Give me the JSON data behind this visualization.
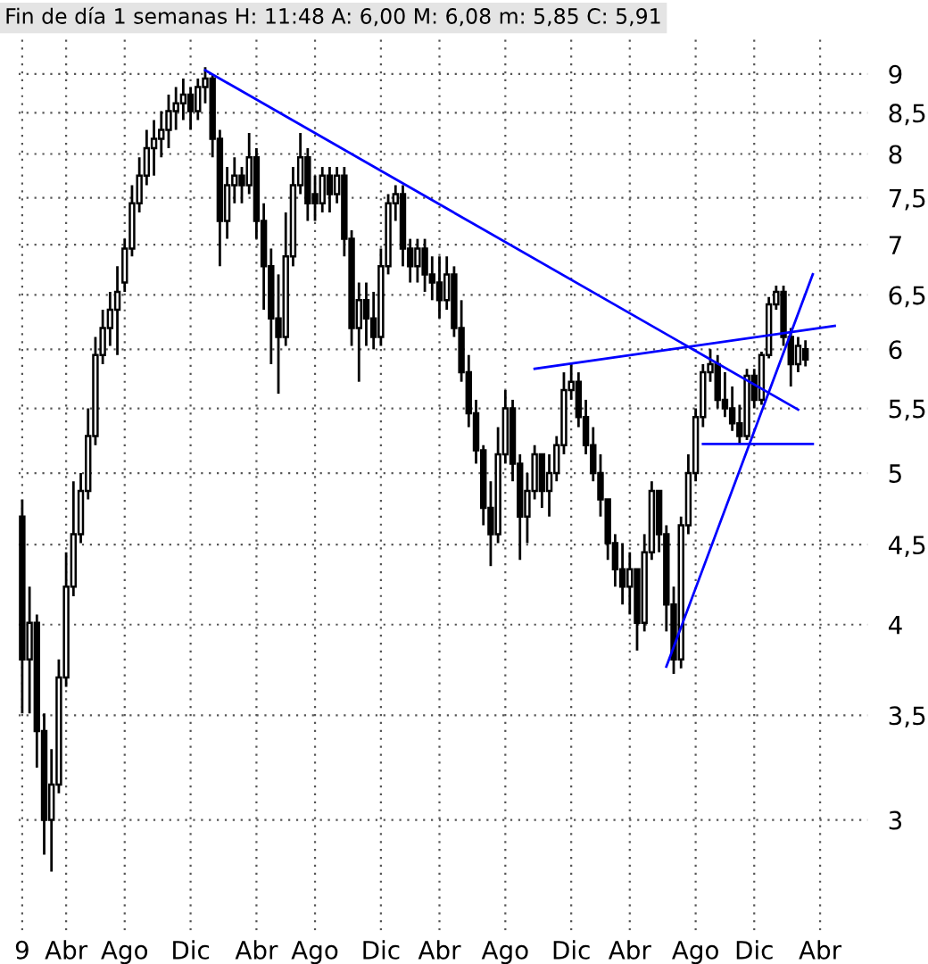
{
  "chart_data": {
    "type": "candlestick",
    "title": "Fin de día 1 semanas H: 11:48 A: 6,00 M: 6,08 m: 5,85 C: 5,91",
    "color": "#000000",
    "log": "y",
    "grid": true,
    "ylim": [
      2.55,
      9.55
    ],
    "categories": [
      "9",
      null,
      null,
      null,
      null,
      null,
      "Abr",
      null,
      null,
      null,
      null,
      null,
      null,
      null,
      "Ago",
      null,
      null,
      null,
      null,
      null,
      null,
      null,
      null,
      "Dic",
      null,
      null,
      null,
      null,
      null,
      null,
      null,
      null,
      "Abr",
      null,
      null,
      null,
      null,
      null,
      null,
      null,
      "Ago",
      null,
      null,
      null,
      null,
      null,
      null,
      null,
      null,
      "Dic",
      null,
      null,
      null,
      null,
      null,
      null,
      null,
      "Abr",
      null,
      null,
      null,
      null,
      null,
      null,
      null,
      null,
      "Ago",
      null,
      null,
      null,
      null,
      null,
      null,
      null,
      null,
      "Dic",
      null,
      null,
      null,
      null,
      null,
      null,
      null,
      "Abr",
      null,
      null,
      null,
      null,
      null,
      null,
      null,
      null,
      "Ago",
      null,
      null,
      null,
      null,
      null,
      null,
      null,
      "Dic",
      null,
      null,
      null,
      null,
      null,
      null,
      null,
      null,
      "Abr",
      null,
      null,
      null,
      null,
      null,
      null
    ],
    "yticks": [
      3,
      {
        "value": 3.5,
        "label": "3,5"
      },
      4,
      {
        "value": 4.5,
        "label": "4,5"
      },
      5,
      {
        "value": 5.5,
        "label": "5,5"
      },
      6,
      {
        "value": 6.5,
        "label": "6,5"
      },
      7,
      {
        "value": 7.5,
        "label": "7,5"
      },
      8,
      {
        "value": 8.5,
        "label": "8,5"
      },
      9
    ],
    "ohlc": [
      [
        4.69,
        4.81,
        3.51,
        3.8
      ],
      [
        3.8,
        4.23,
        3.51,
        4.01
      ],
      [
        4.01,
        4.06,
        3.24,
        3.42
      ],
      [
        3.42,
        3.51,
        2.85,
        3.0
      ],
      [
        3.0,
        3.33,
        2.78,
        3.16
      ],
      [
        3.16,
        3.8,
        3.12,
        3.7
      ],
      [
        3.7,
        4.45,
        3.65,
        4.23
      ],
      [
        4.23,
        4.94,
        4.17,
        4.57
      ],
      [
        4.57,
        5.0,
        4.51,
        4.87
      ],
      [
        4.87,
        5.5,
        4.81,
        5.28
      ],
      [
        5.28,
        6.11,
        5.21,
        5.95
      ],
      [
        5.95,
        6.36,
        5.87,
        6.19
      ],
      [
        6.19,
        6.53,
        6.03,
        6.36
      ],
      [
        6.36,
        6.78,
        5.95,
        6.53
      ],
      [
        6.62,
        7.06,
        6.53,
        6.96
      ],
      [
        6.96,
        7.64,
        6.88,
        7.44
      ],
      [
        7.44,
        7.96,
        7.34,
        7.75
      ],
      [
        7.75,
        8.29,
        7.64,
        8.07
      ],
      [
        8.07,
        8.41,
        7.75,
        8.18
      ],
      [
        8.18,
        8.52,
        7.96,
        8.29
      ],
      [
        8.29,
        8.73,
        8.07,
        8.52
      ],
      [
        8.52,
        8.83,
        8.29,
        8.62
      ],
      [
        8.62,
        8.94,
        8.41,
        8.73
      ],
      [
        8.73,
        8.83,
        8.29,
        8.52
      ],
      [
        8.52,
        8.94,
        8.41,
        8.83
      ],
      [
        8.83,
        9.09,
        8.62,
        8.94
      ],
      [
        8.94,
        9.0,
        7.96,
        8.18
      ],
      [
        8.18,
        8.29,
        6.78,
        7.25
      ],
      [
        7.25,
        7.85,
        7.06,
        7.64
      ],
      [
        7.64,
        7.96,
        7.44,
        7.75
      ],
      [
        7.75,
        7.85,
        7.44,
        7.64
      ],
      [
        7.64,
        8.25,
        7.54,
        7.96
      ],
      [
        7.96,
        8.07,
        7.06,
        7.25
      ],
      [
        7.25,
        7.44,
        6.36,
        6.78
      ],
      [
        6.78,
        6.96,
        5.87,
        6.28
      ],
      [
        6.28,
        6.7,
        5.62,
        6.11
      ],
      [
        6.11,
        7.34,
        6.03,
        6.88
      ],
      [
        6.88,
        7.85,
        6.78,
        7.64
      ],
      [
        7.64,
        8.25,
        7.54,
        7.96
      ],
      [
        7.96,
        8.07,
        7.25,
        7.44
      ],
      [
        7.54,
        7.75,
        7.25,
        7.44
      ],
      [
        7.44,
        7.85,
        7.34,
        7.75
      ],
      [
        7.75,
        7.85,
        7.34,
        7.54
      ],
      [
        7.54,
        7.85,
        7.44,
        7.75
      ],
      [
        7.75,
        7.85,
        6.88,
        7.06
      ],
      [
        7.06,
        7.15,
        6.03,
        6.19
      ],
      [
        6.19,
        6.62,
        5.72,
        6.45
      ],
      [
        6.45,
        6.62,
        6.03,
        6.28
      ],
      [
        6.28,
        6.53,
        6.0,
        6.11
      ],
      [
        6.11,
        6.96,
        6.03,
        6.78
      ],
      [
        6.78,
        7.54,
        6.7,
        7.44
      ],
      [
        7.44,
        7.64,
        7.25,
        7.54
      ],
      [
        7.54,
        7.64,
        6.78,
        6.96
      ],
      [
        6.96,
        7.06,
        6.62,
        6.78
      ],
      [
        6.78,
        7.06,
        6.62,
        6.96
      ],
      [
        6.96,
        7.06,
        6.53,
        6.7
      ],
      [
        6.7,
        6.88,
        6.45,
        6.62
      ],
      [
        6.62,
        6.88,
        6.28,
        6.45
      ],
      [
        6.45,
        6.88,
        6.36,
        6.7
      ],
      [
        6.7,
        6.78,
        6.11,
        6.19
      ],
      [
        6.19,
        6.45,
        5.72,
        5.8
      ],
      [
        5.8,
        5.95,
        5.35,
        5.46
      ],
      [
        5.46,
        5.57,
        5.07,
        5.17
      ],
      [
        5.17,
        5.21,
        4.63,
        4.75
      ],
      [
        4.75,
        4.94,
        4.36,
        4.57
      ],
      [
        4.57,
        5.35,
        4.51,
        5.14
      ],
      [
        5.14,
        5.65,
        5.07,
        5.5
      ],
      [
        5.5,
        5.57,
        4.94,
        5.07
      ],
      [
        5.07,
        5.14,
        4.4,
        4.69
      ],
      [
        4.69,
        5.0,
        4.51,
        4.87
      ],
      [
        4.87,
        5.21,
        4.81,
        5.14
      ],
      [
        5.14,
        5.14,
        4.75,
        4.87
      ],
      [
        4.87,
        5.14,
        4.69,
        5.0
      ],
      [
        5.0,
        5.28,
        4.94,
        5.21
      ],
      [
        5.21,
        5.8,
        5.14,
        5.65
      ],
      [
        5.65,
        5.87,
        5.57,
        5.72
      ],
      [
        5.72,
        5.8,
        5.35,
        5.43
      ],
      [
        5.43,
        5.57,
        5.14,
        5.21
      ],
      [
        5.21,
        5.35,
        4.94,
        5.0
      ],
      [
        5.0,
        5.14,
        4.69,
        4.81
      ],
      [
        4.81,
        4.81,
        4.4,
        4.51
      ],
      [
        4.51,
        4.57,
        4.23,
        4.34
      ],
      [
        4.34,
        4.51,
        4.12,
        4.23
      ],
      [
        4.23,
        4.45,
        4.06,
        4.34
      ],
      [
        4.34,
        4.34,
        3.85,
        4.01
      ],
      [
        4.01,
        4.57,
        3.96,
        4.45
      ],
      [
        4.45,
        4.94,
        4.4,
        4.87
      ],
      [
        4.87,
        4.87,
        4.45,
        4.57
      ],
      [
        4.57,
        4.63,
        3.96,
        4.12
      ],
      [
        4.12,
        4.23,
        3.72,
        3.8
      ],
      [
        3.8,
        4.69,
        3.75,
        4.63
      ],
      [
        4.63,
        5.14,
        4.57,
        5.0
      ],
      [
        5.0,
        5.5,
        4.94,
        5.43
      ],
      [
        5.43,
        5.87,
        5.35,
        5.8
      ],
      [
        5.8,
        6.0,
        5.72,
        5.87
      ],
      [
        5.87,
        5.95,
        5.5,
        5.57
      ],
      [
        5.57,
        5.8,
        5.43,
        5.5
      ],
      [
        5.5,
        5.68,
        5.32,
        5.38
      ],
      [
        5.38,
        5.53,
        5.22,
        5.28
      ],
      [
        5.28,
        5.83,
        5.25,
        5.77
      ],
      [
        5.77,
        5.83,
        5.5,
        5.57
      ],
      [
        5.57,
        5.98,
        5.53,
        5.95
      ],
      [
        5.95,
        6.48,
        5.92,
        6.41
      ],
      [
        6.41,
        6.59,
        6.36,
        6.53
      ],
      [
        6.53,
        6.59,
        6.03,
        6.11
      ],
      [
        6.11,
        6.19,
        5.68,
        5.87
      ],
      [
        5.87,
        6.11,
        5.8,
        6.03
      ],
      [
        6.0,
        6.08,
        5.85,
        5.91
      ],
      null,
      null,
      null,
      null,
      null,
      null,
      null,
      null
    ],
    "series": [
      {
        "type": "line",
        "color": "#0000ff",
        "values": [
          null,
          null,
          null,
          null,
          null,
          null,
          null,
          null,
          null,
          null,
          null,
          null,
          null,
          null,
          null,
          null,
          null,
          null,
          null,
          null,
          null,
          null,
          null,
          null,
          null,
          9.05,
          null,
          null,
          null,
          null,
          null,
          null,
          null,
          null,
          null,
          null,
          null,
          null,
          null,
          null,
          null,
          null,
          null,
          null,
          null,
          null,
          null,
          null,
          null,
          null,
          null,
          null,
          null,
          null,
          null,
          null,
          null,
          null,
          null,
          null,
          null,
          null,
          null,
          null,
          null,
          null,
          null,
          null,
          null,
          null,
          null,
          null,
          null,
          null,
          null,
          null,
          null,
          null,
          null,
          null,
          null,
          null,
          null,
          null,
          null,
          null,
          null,
          null,
          null,
          null,
          null,
          null,
          null,
          null,
          null,
          null,
          null,
          null,
          null,
          null,
          null,
          null,
          null,
          null,
          null,
          null,
          5.49,
          null,
          null,
          null,
          null,
          null,
          null,
          null,
          null,
          null
        ]
      },
      {
        "type": "line",
        "color": "#0000ff",
        "values": [
          null,
          null,
          null,
          null,
          null,
          null,
          null,
          null,
          null,
          null,
          null,
          null,
          null,
          null,
          null,
          null,
          null,
          null,
          null,
          null,
          null,
          null,
          null,
          null,
          null,
          null,
          null,
          null,
          null,
          null,
          null,
          null,
          null,
          null,
          null,
          null,
          null,
          null,
          null,
          null,
          null,
          null,
          null,
          null,
          null,
          null,
          null,
          null,
          null,
          null,
          null,
          null,
          null,
          null,
          null,
          null,
          null,
          null,
          null,
          null,
          null,
          null,
          null,
          null,
          null,
          null,
          null,
          null,
          null,
          null,
          5.83,
          null,
          null,
          null,
          null,
          null,
          null,
          null,
          null,
          null,
          null,
          null,
          null,
          null,
          null,
          null,
          null,
          null,
          null,
          null,
          null,
          null,
          null,
          null,
          null,
          null,
          null,
          null,
          null,
          null,
          null,
          null,
          null,
          null,
          null,
          null,
          null,
          null,
          null,
          null,
          null,
          6.21,
          null,
          null,
          null,
          null
        ]
      },
      {
        "type": "line",
        "color": "#0000ff",
        "values": [
          null,
          null,
          null,
          null,
          null,
          null,
          null,
          null,
          null,
          null,
          null,
          null,
          null,
          null,
          null,
          null,
          null,
          null,
          null,
          null,
          null,
          null,
          null,
          null,
          null,
          null,
          null,
          null,
          null,
          null,
          null,
          null,
          null,
          null,
          null,
          null,
          null,
          null,
          null,
          null,
          null,
          null,
          null,
          null,
          null,
          null,
          null,
          null,
          null,
          null,
          null,
          null,
          null,
          null,
          null,
          null,
          null,
          null,
          null,
          null,
          null,
          null,
          null,
          null,
          null,
          null,
          null,
          null,
          null,
          null,
          null,
          null,
          null,
          null,
          null,
          null,
          null,
          null,
          null,
          null,
          null,
          null,
          null,
          null,
          null,
          null,
          null,
          null,
          3.76,
          null,
          null,
          null,
          null,
          null,
          null,
          null,
          null,
          null,
          null,
          null,
          null,
          null,
          null,
          null,
          null,
          null,
          null,
          null,
          6.7,
          null,
          null,
          null,
          null,
          null,
          null,
          null
        ]
      },
      {
        "type": "line",
        "color": "#0000ff",
        "values": [
          null,
          null,
          null,
          null,
          null,
          null,
          null,
          null,
          null,
          null,
          null,
          null,
          null,
          null,
          null,
          null,
          null,
          null,
          null,
          null,
          null,
          null,
          null,
          null,
          null,
          null,
          null,
          null,
          null,
          null,
          null,
          null,
          null,
          null,
          null,
          null,
          null,
          null,
          null,
          null,
          null,
          null,
          null,
          null,
          null,
          null,
          null,
          null,
          null,
          null,
          null,
          null,
          null,
          null,
          null,
          null,
          null,
          null,
          null,
          null,
          null,
          null,
          null,
          null,
          null,
          null,
          null,
          null,
          null,
          null,
          null,
          null,
          null,
          null,
          null,
          null,
          null,
          null,
          null,
          null,
          null,
          null,
          null,
          null,
          null,
          null,
          null,
          null,
          null,
          null,
          null,
          null,
          null,
          5.22,
          null,
          null,
          null,
          null,
          null,
          null,
          null,
          null,
          null,
          null,
          null,
          null,
          null,
          null,
          5.22,
          null,
          null,
          null,
          null,
          null,
          null,
          null
        ]
      }
    ]
  }
}
